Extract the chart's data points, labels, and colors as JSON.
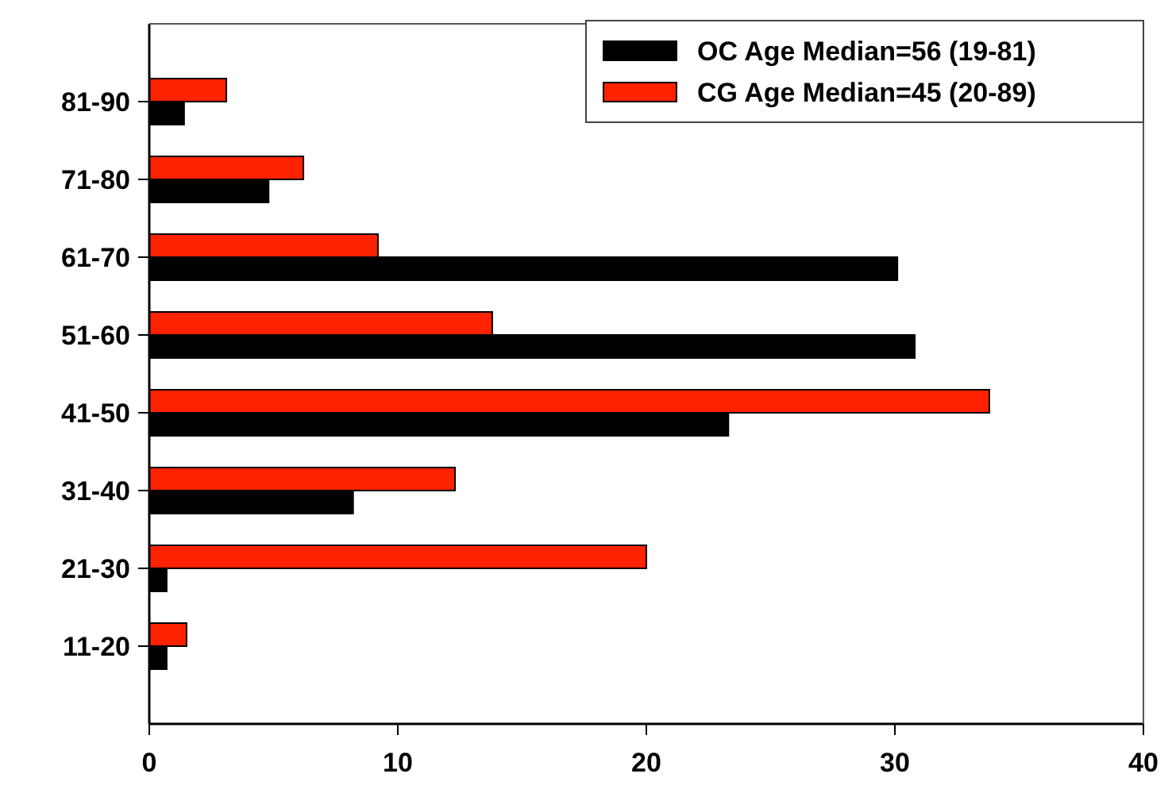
{
  "chart_data": {
    "type": "bar",
    "orientation": "horizontal",
    "categories": [
      "81-90",
      "71-80",
      "61-70",
      "51-60",
      "41-50",
      "31-40",
      "21-30",
      "11-20"
    ],
    "series": [
      {
        "name": "OC Age Median=56 (19-81)",
        "color": "#000000",
        "values": [
          1.4,
          4.8,
          30.1,
          30.8,
          23.3,
          8.2,
          0.7,
          0.7
        ]
      },
      {
        "name": "CG Age Median=45 (20-89)",
        "color": "#ff2200",
        "values": [
          3.1,
          6.2,
          9.2,
          13.8,
          33.8,
          12.3,
          20.0,
          1.5
        ]
      }
    ],
    "xlim": [
      0,
      40
    ],
    "xticks": [
      0,
      10,
      20,
      30,
      40
    ],
    "legend": "top right",
    "grid": false
  }
}
